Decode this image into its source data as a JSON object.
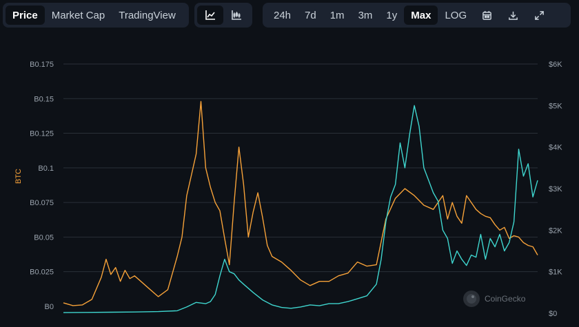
{
  "toolbar": {
    "view_tabs": [
      {
        "label": "Price",
        "active": true
      },
      {
        "label": "Market Cap",
        "active": false
      },
      {
        "label": "TradingView",
        "active": false
      }
    ],
    "chart_style_icons": [
      "line-chart-icon",
      "candlestick-chart-icon"
    ],
    "active_style": "line-chart-icon",
    "ranges": [
      {
        "label": "24h",
        "active": false
      },
      {
        "label": "7d",
        "active": false
      },
      {
        "label": "1m",
        "active": false
      },
      {
        "label": "3m",
        "active": false
      },
      {
        "label": "1y",
        "active": false
      },
      {
        "label": "Max",
        "active": true
      },
      {
        "label": "LOG",
        "active": false
      }
    ],
    "action_icons": [
      "calendar-icon",
      "download-icon",
      "expand-icon"
    ]
  },
  "watermark": {
    "text": "CoinGecko"
  },
  "colors": {
    "background": "#0d1117",
    "btc_series": "#f7a239",
    "usd_series": "#3fd6cf",
    "grid": "#2a3038",
    "tick_text": "#9aa3ad"
  },
  "chart_data": {
    "type": "line",
    "grid": true,
    "ylabel_left": "BTC",
    "ylabel_right": "",
    "y_left_ticks": [
      "B0",
      "B0.025",
      "B0.05",
      "B0.075",
      "B0.1",
      "B0.125",
      "B0.15",
      "B0.175"
    ],
    "y_left_values": [
      0,
      0.025,
      0.05,
      0.075,
      0.1,
      0.125,
      0.15,
      0.175
    ],
    "y_right_ticks": [
      "$0",
      "$1K",
      "$2K",
      "$3K",
      "$4K",
      "$5K",
      "$6K"
    ],
    "y_right_values": [
      0,
      1000,
      2000,
      3000,
      4000,
      5000,
      6000
    ],
    "ylim_left": [
      -0.005,
      0.175
    ],
    "ylim_right": [
      0,
      6000
    ],
    "x_index_range": [
      0,
      100
    ],
    "series": [
      {
        "name": "BTC",
        "axis": "left",
        "color": "#f7a239",
        "x": [
          0,
          2,
          4,
          6,
          8,
          9,
          10,
          11,
          12,
          13,
          14,
          15,
          16,
          18,
          20,
          22,
          24,
          25,
          26,
          27,
          28,
          29,
          30,
          31,
          32,
          33,
          34,
          35,
          36,
          37,
          38,
          39,
          40,
          41,
          42,
          43,
          44,
          46,
          48,
          50,
          52,
          54,
          56,
          58,
          60,
          62,
          64,
          66,
          68,
          70,
          72,
          74,
          76,
          78,
          80,
          81,
          82,
          83,
          84,
          85,
          86,
          87,
          88,
          89,
          90,
          91,
          92,
          93,
          94,
          95,
          96,
          97,
          98,
          99,
          100
        ],
        "y": [
          0.0025,
          0.0005,
          0.001,
          0.005,
          0.021,
          0.034,
          0.023,
          0.028,
          0.018,
          0.026,
          0.02,
          0.022,
          0.019,
          0.013,
          0.007,
          0.012,
          0.036,
          0.05,
          0.08,
          0.095,
          0.11,
          0.148,
          0.1,
          0.086,
          0.075,
          0.069,
          0.049,
          0.03,
          0.075,
          0.115,
          0.088,
          0.05,
          0.068,
          0.082,
          0.064,
          0.044,
          0.036,
          0.032,
          0.026,
          0.019,
          0.015,
          0.018,
          0.018,
          0.022,
          0.024,
          0.032,
          0.029,
          0.03,
          0.063,
          0.078,
          0.085,
          0.08,
          0.073,
          0.07,
          0.08,
          0.063,
          0.075,
          0.065,
          0.06,
          0.08,
          0.075,
          0.07,
          0.067,
          0.065,
          0.064,
          0.059,
          0.055,
          0.057,
          0.049,
          0.051,
          0.05,
          0.046,
          0.044,
          0.043,
          0.037
        ]
      },
      {
        "name": "USD",
        "axis": "right",
        "color": "#3fd6cf",
        "x": [
          0,
          5,
          10,
          15,
          20,
          24,
          26,
          28,
          30,
          31,
          32,
          33,
          34,
          35,
          36,
          37,
          38,
          40,
          42,
          44,
          46,
          48,
          50,
          52,
          54,
          56,
          58,
          60,
          62,
          64,
          66,
          67,
          68,
          69,
          70,
          71,
          72,
          73,
          74,
          75,
          76,
          77,
          78,
          79,
          80,
          81,
          82,
          83,
          84,
          85,
          86,
          87,
          88,
          89,
          90,
          91,
          92,
          93,
          94,
          95,
          96,
          97,
          98,
          99,
          100
        ],
        "y": [
          15,
          20,
          25,
          30,
          40,
          60,
          150,
          260,
          230,
          280,
          450,
          900,
          1300,
          1000,
          950,
          800,
          700,
          500,
          320,
          200,
          140,
          120,
          150,
          200,
          180,
          230,
          230,
          280,
          350,
          420,
          700,
          1300,
          2200,
          2800,
          3100,
          4100,
          3500,
          4300,
          5000,
          4500,
          3500,
          3200,
          2900,
          2700,
          2000,
          1800,
          1200,
          1500,
          1300,
          1150,
          1400,
          1350,
          1900,
          1300,
          1800,
          1600,
          1900,
          1500,
          1700,
          2200,
          3950,
          3300,
          3600,
          2800,
          3200
        ]
      }
    ]
  }
}
